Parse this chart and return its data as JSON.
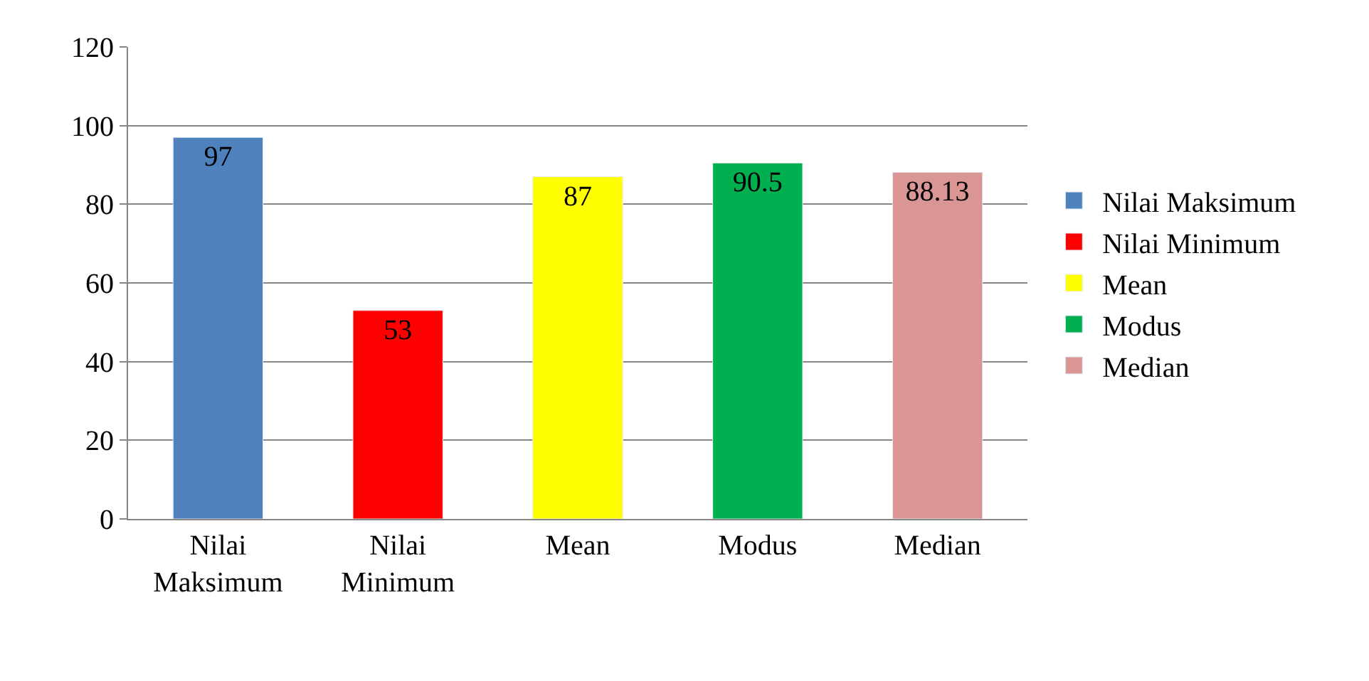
{
  "chart_data": {
    "type": "bar",
    "categories": [
      "Nilai Maksimum",
      "Nilai Minimum",
      "Mean",
      "Modus",
      "Median"
    ],
    "series": [
      {
        "name": "Nilai Maksimum",
        "color": "#4f81bd",
        "values": [
          97,
          null,
          null,
          null,
          null
        ]
      },
      {
        "name": "Nilai Minimum",
        "color": "#ff0000",
        "values": [
          null,
          53,
          null,
          null,
          null
        ]
      },
      {
        "name": "Mean",
        "color": "#ffff00",
        "values": [
          null,
          null,
          87,
          null,
          null
        ]
      },
      {
        "name": "Modus",
        "color": "#00b050",
        "values": [
          null,
          null,
          null,
          90.5,
          null
        ]
      },
      {
        "name": "Median",
        "color": "#d99694",
        "values": [
          null,
          null,
          null,
          null,
          88.13
        ]
      }
    ],
    "ylim": [
      0,
      120
    ],
    "yticks": [
      0,
      20,
      40,
      60,
      80,
      100,
      120
    ],
    "grid": "y",
    "legend": "right",
    "data_labels": true
  }
}
